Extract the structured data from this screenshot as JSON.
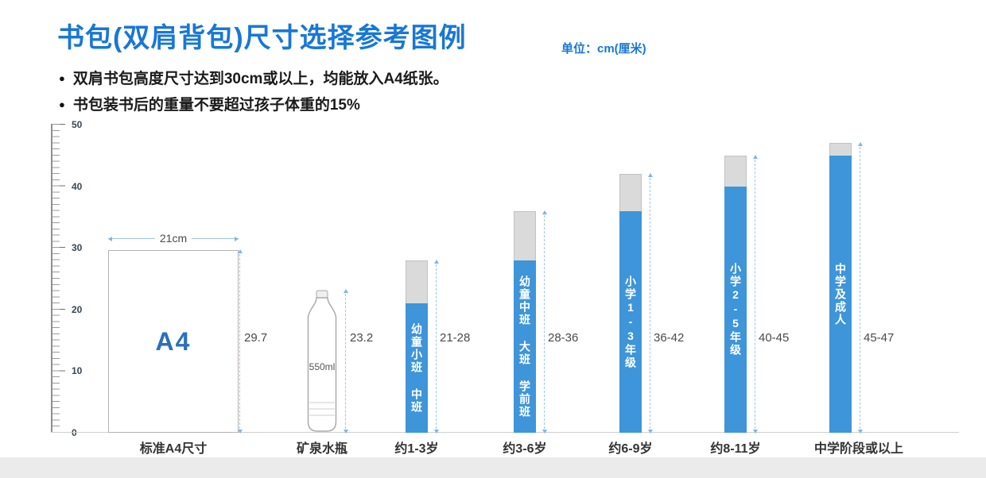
{
  "bullet": "●",
  "header": {
    "title": "书包(双肩背包)尺寸选择参考图例",
    "unit": "单位：cm(厘米)"
  },
  "notes": [
    "双肩书包高度尺寸达到30cm或以上，均能放入A4纸张。",
    "书包装书后的重量不要超过孩子体重的15%"
  ],
  "chart_data": {
    "type": "bar",
    "title": "书包(双肩背包)尺寸选择参考图例",
    "unit": "cm",
    "unit_label": "单位：cm(厘米)",
    "axis": {
      "min": 0,
      "max": 50,
      "ticks": [
        0,
        10,
        20,
        30,
        40,
        50
      ],
      "tick_labels_desc": [
        "50",
        "40",
        "30",
        "20",
        "10",
        "0"
      ]
    },
    "references": [
      {
        "name": "标准A4尺寸",
        "body_label": "A4",
        "width_label": "21cm",
        "height": 29.7,
        "height_label": "29.7"
      },
      {
        "name": "矿泉水瓶",
        "body_label": "550ml",
        "height": 23.2,
        "height_label": "23.2"
      }
    ],
    "items": [
      {
        "label": "约1-3岁",
        "bar_text": "幼童小班 中班",
        "min": 21,
        "max": 28,
        "range_label": "21-28"
      },
      {
        "label": "约3-6岁",
        "bar_text": "幼童中班 大班 学前班",
        "min": 28,
        "max": 36,
        "range_label": "28-36"
      },
      {
        "label": "约6-9岁",
        "bar_text": "小学1-3年级",
        "min": 36,
        "max": 42,
        "range_label": "36-42"
      },
      {
        "label": "约8-11岁",
        "bar_text": "小学2-5年级",
        "min": 40,
        "max": 45,
        "range_label": "40-45"
      },
      {
        "label": "中学阶段或以上",
        "bar_text": "中学及成人",
        "min": 45,
        "max": 47,
        "range_label": "45-47"
      }
    ],
    "colors": {
      "accent_blue": "#1877d6",
      "bar_blue": "#3e95d9",
      "cap_gray": "#dadada",
      "measure_blue": "#9cc6e9"
    }
  }
}
